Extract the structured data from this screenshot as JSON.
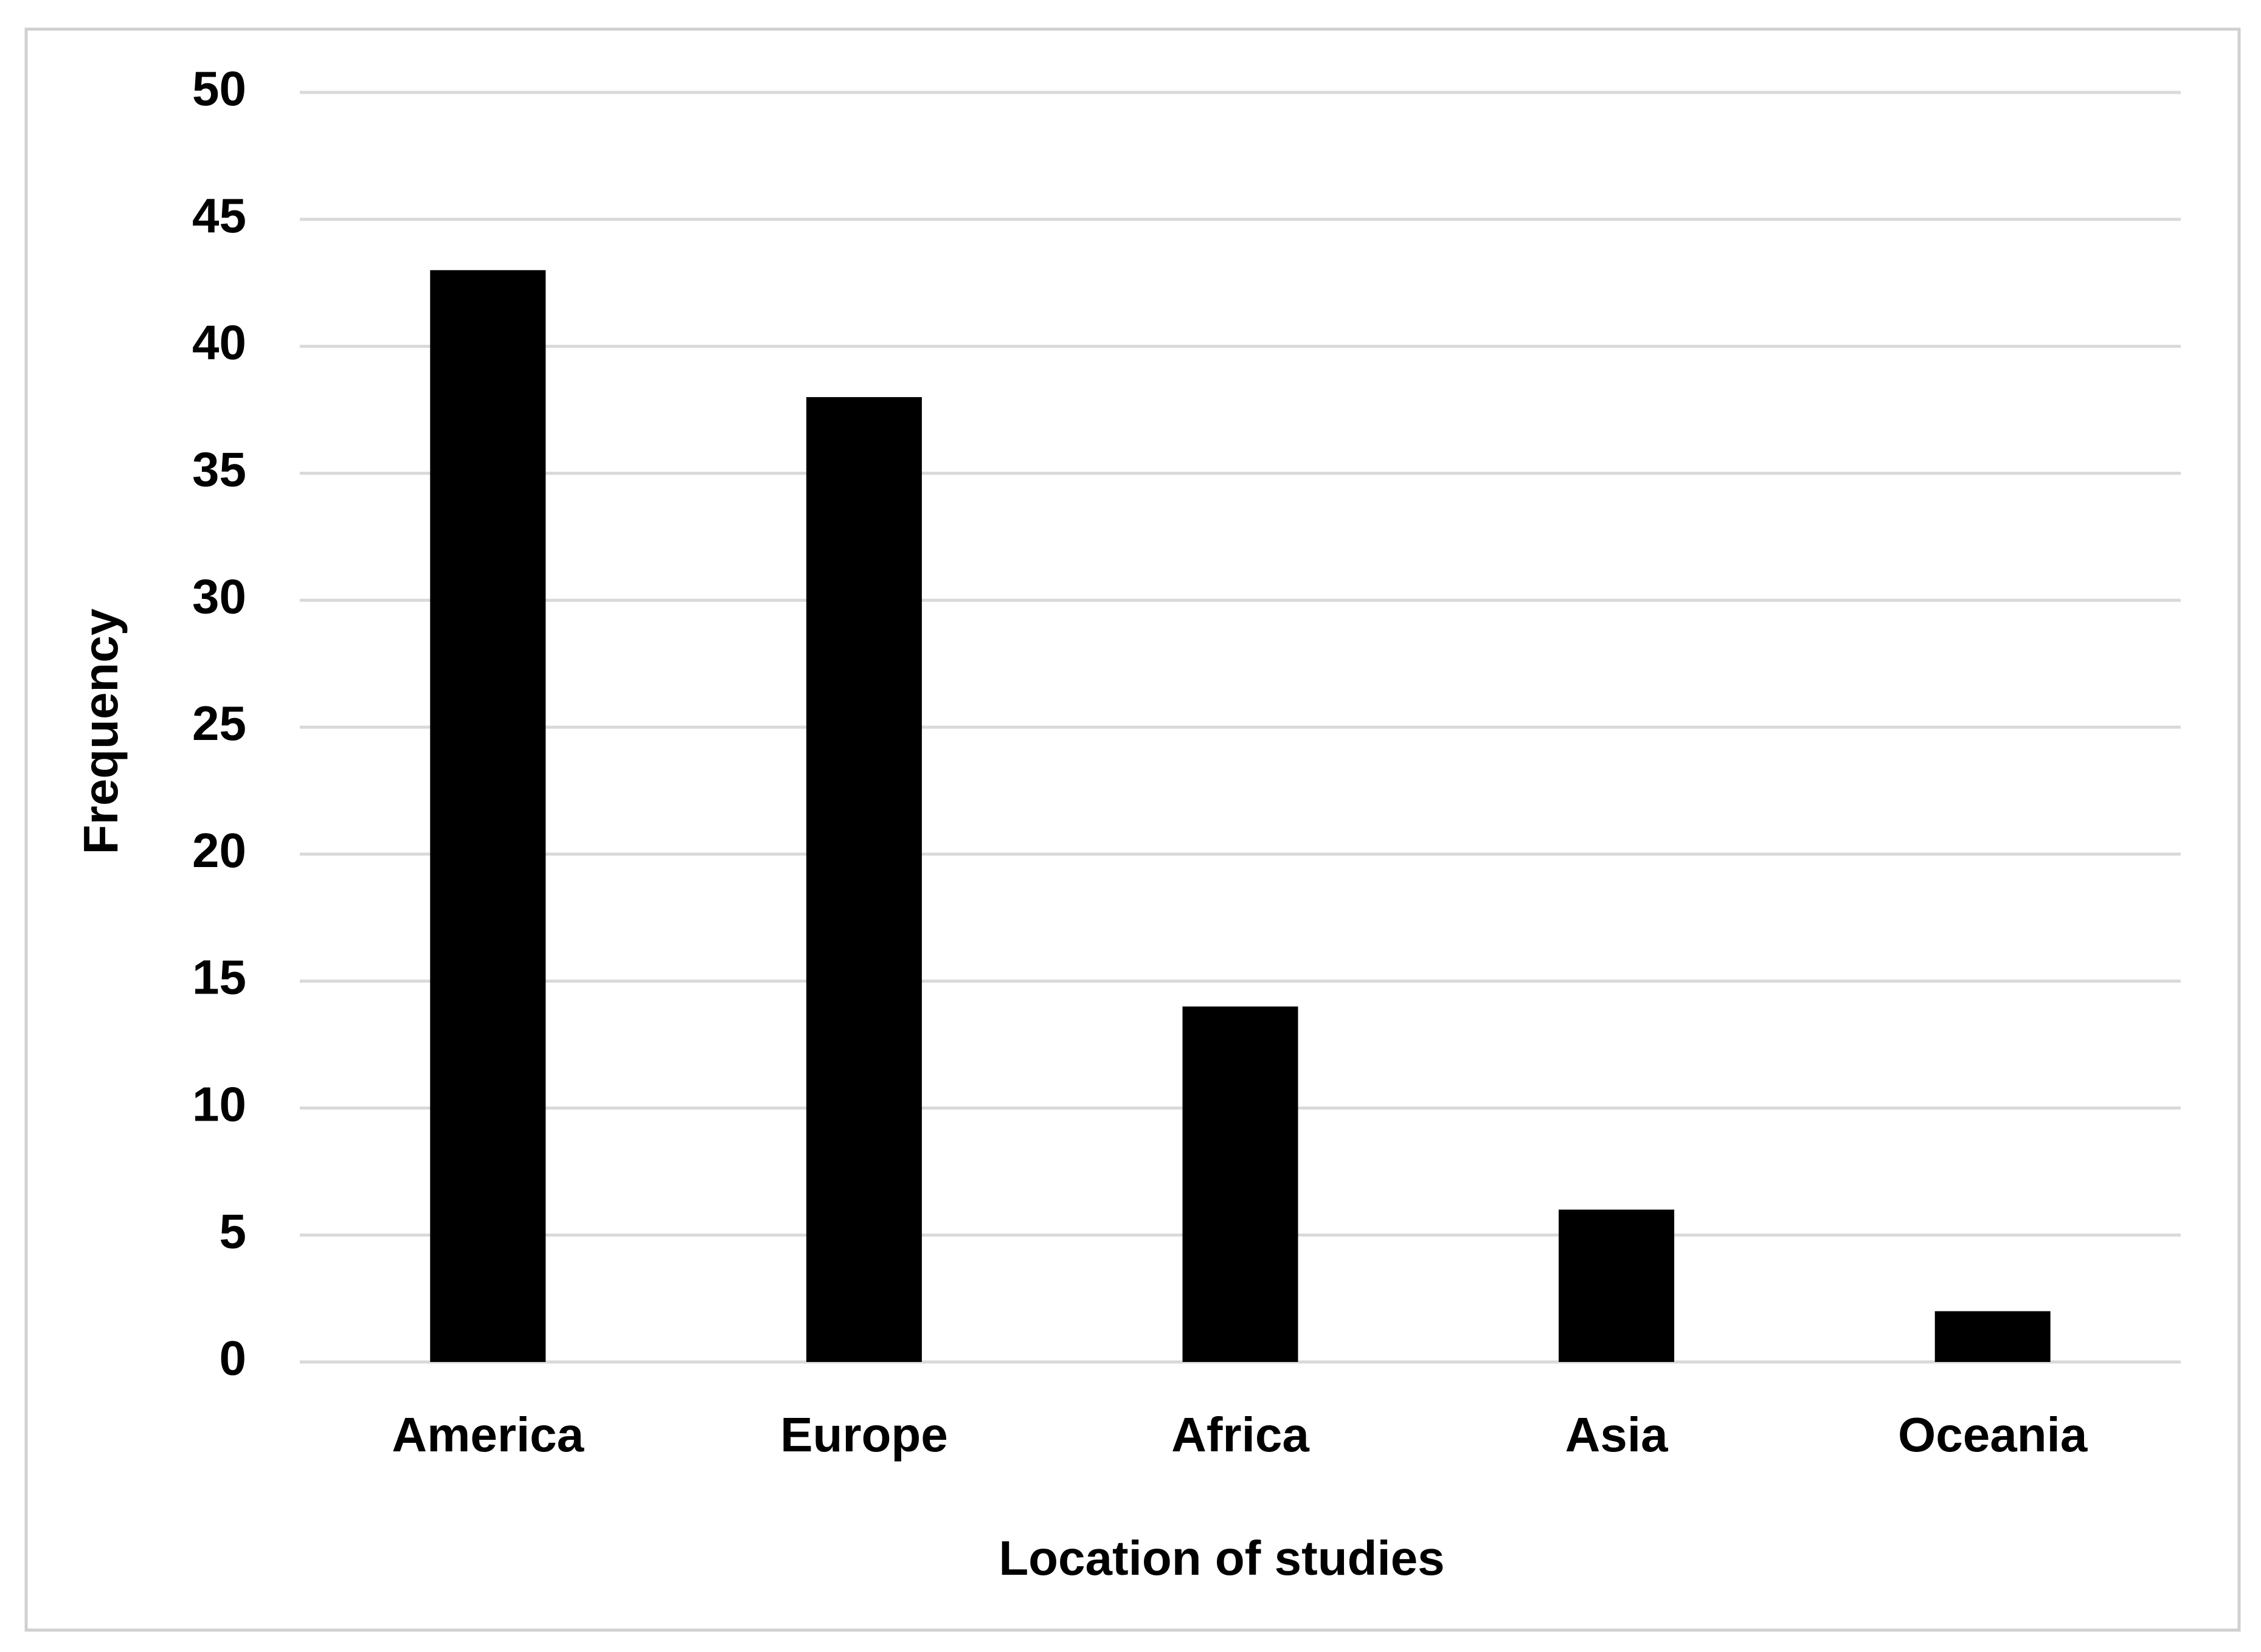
{
  "chart_data": {
    "type": "bar",
    "x_label": "Location of studies",
    "y_label": "Frequency",
    "categories": [
      "America",
      "Europe",
      "Africa",
      "Asia",
      "Oceania"
    ],
    "values": [
      43,
      38,
      14,
      6,
      2
    ],
    "color": "#000000",
    "ylim": [
      0,
      50
    ],
    "yticks": [
      0,
      5,
      10,
      15,
      20,
      25,
      30,
      35,
      40,
      45,
      50
    ],
    "grid": true
  }
}
